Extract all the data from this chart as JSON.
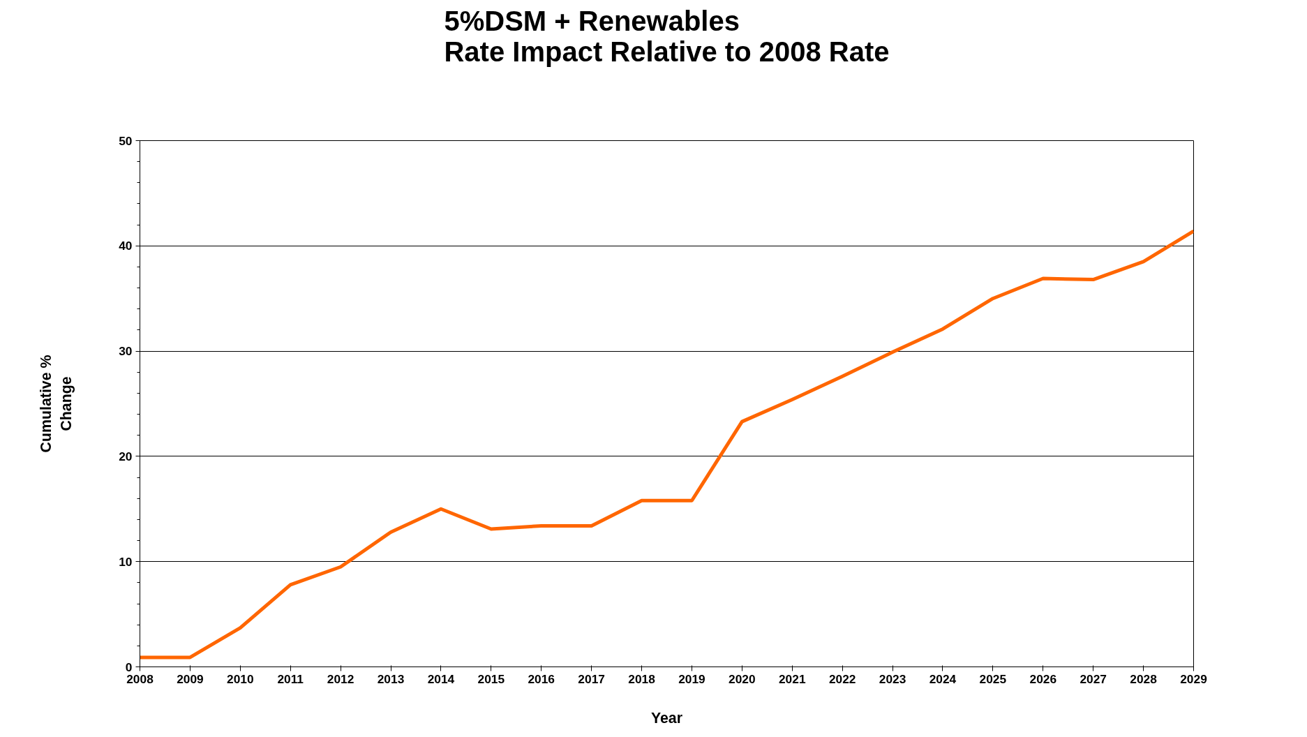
{
  "chart_data": {
    "type": "line",
    "title": "5%DSM + Renewables\nRate Impact Relative to 2008 Rate",
    "xlabel": "Year",
    "ylabel": "Cumulative %\nChange",
    "x": [
      2008,
      2009,
      2010,
      2011,
      2012,
      2013,
      2014,
      2015,
      2016,
      2017,
      2018,
      2019,
      2020,
      2021,
      2022,
      2023,
      2024,
      2025,
      2026,
      2027,
      2028,
      2029
    ],
    "series": [
      {
        "color": "#ff6600",
        "values": [
          0.9,
          0.9,
          3.7,
          7.8,
          9.5,
          12.8,
          15.0,
          13.1,
          13.4,
          13.4,
          15.8,
          15.8,
          23.3,
          25.4,
          27.6,
          29.9,
          32.1,
          35.0,
          36.9,
          36.8,
          38.5,
          41.4
        ]
      }
    ],
    "xlim": [
      2008,
      2029
    ],
    "xticks": [
      2008,
      2009,
      2010,
      2011,
      2012,
      2013,
      2014,
      2015,
      2016,
      2017,
      2018,
      2019,
      2020,
      2021,
      2022,
      2023,
      2024,
      2025,
      2026,
      2027,
      2028,
      2029
    ],
    "ylim": [
      0,
      50
    ],
    "yticks": [
      0,
      10,
      20,
      30,
      40,
      50
    ],
    "grid": "y",
    "marker": "none",
    "line_style": "solid"
  }
}
